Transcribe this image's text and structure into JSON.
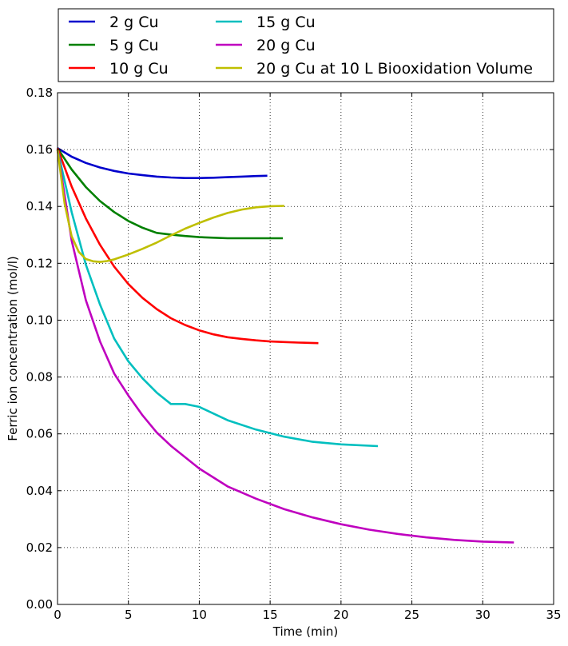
{
  "chart_data": {
    "type": "line",
    "xlabel": "Time (min)",
    "ylabel": "Ferric ion concentration (mol/l)",
    "xlim": [
      0,
      35
    ],
    "ylim": [
      0,
      0.18
    ],
    "xticks": [
      "0",
      "5",
      "10",
      "15",
      "20",
      "25",
      "30",
      "35"
    ],
    "yticks": [
      "0.00",
      "0.02",
      "0.04",
      "0.06",
      "0.08",
      "0.10",
      "0.12",
      "0.14",
      "0.16",
      "0.18"
    ],
    "grid": true,
    "legend_position": "top, outside plot, two columns",
    "series": [
      {
        "name": "2 g Cu",
        "color": "#0000cc",
        "x": [
          0,
          1,
          2,
          3,
          4,
          5,
          6,
          7,
          8,
          9,
          10,
          11,
          12,
          13,
          14,
          14.8
        ],
        "y": [
          0.1605,
          0.1575,
          0.1553,
          0.1537,
          0.1525,
          0.1516,
          0.151,
          0.1505,
          0.1502,
          0.15,
          0.15,
          0.1501,
          0.1503,
          0.1505,
          0.1507,
          0.1508
        ]
      },
      {
        "name": "5 g Cu",
        "color": "#008000",
        "x": [
          0,
          1,
          2,
          3,
          4,
          5,
          6,
          7,
          8,
          9,
          10,
          11,
          12,
          13,
          14,
          15,
          15.9
        ],
        "y": [
          0.1605,
          0.153,
          0.1468,
          0.1419,
          0.138,
          0.1349,
          0.1325,
          0.1307,
          0.1301,
          0.1296,
          0.1292,
          0.129,
          0.1288,
          0.1288,
          0.1288,
          0.1288,
          0.1288
        ]
      },
      {
        "name": "10 g Cu",
        "color": "#ff0000",
        "x": [
          0,
          1,
          2,
          3,
          4,
          5,
          6,
          7,
          8,
          9,
          10,
          11,
          12,
          13,
          14,
          15,
          16,
          17,
          18.4
        ],
        "y": [
          0.1605,
          0.147,
          0.1358,
          0.1265,
          0.1188,
          0.1127,
          0.1078,
          0.1039,
          0.1007,
          0.0983,
          0.0964,
          0.095,
          0.094,
          0.0934,
          0.0929,
          0.0925,
          0.0923,
          0.0921,
          0.0919
        ]
      },
      {
        "name": "15 g Cu",
        "color": "#00bfbf",
        "x": [
          0,
          1,
          2,
          3,
          4,
          5,
          6,
          7,
          8,
          9,
          10,
          12,
          14,
          16,
          18,
          20,
          22.6
        ],
        "y": [
          0.16,
          0.138,
          0.1195,
          0.1055,
          0.0935,
          0.0855,
          0.0795,
          0.0745,
          0.0705,
          0.0705,
          0.0695,
          0.0648,
          0.0615,
          0.059,
          0.0572,
          0.0563,
          0.0557
        ]
      },
      {
        "name": "20 g Cu",
        "color": "#bf00bf",
        "x": [
          0,
          1,
          2,
          3,
          4,
          5,
          6,
          7,
          8,
          10,
          12,
          14,
          16,
          18,
          20,
          22,
          24,
          26,
          28,
          30,
          32.2
        ],
        "y": [
          0.16,
          0.128,
          0.107,
          0.0925,
          0.0812,
          0.0735,
          0.0665,
          0.0605,
          0.0558,
          0.0478,
          0.0415,
          0.0372,
          0.0335,
          0.0306,
          0.0282,
          0.0263,
          0.0248,
          0.0236,
          0.0227,
          0.0221,
          0.0218
        ]
      },
      {
        "name": "20 g Cu at 10 L Biooxidation Volume",
        "color": "#bfbf00",
        "x": [
          0,
          0.5,
          1,
          1.5,
          2,
          2.5,
          3,
          3.5,
          4,
          5,
          6,
          7,
          8,
          9,
          10,
          11,
          12,
          13,
          14,
          15,
          16
        ],
        "y": [
          0.16,
          0.141,
          0.1295,
          0.124,
          0.1215,
          0.1207,
          0.1205,
          0.1208,
          0.1214,
          0.1231,
          0.1251,
          0.1273,
          0.1298,
          0.1322,
          0.1342,
          0.1361,
          0.1377,
          0.1389,
          0.1397,
          0.1401,
          0.1402
        ]
      }
    ]
  }
}
